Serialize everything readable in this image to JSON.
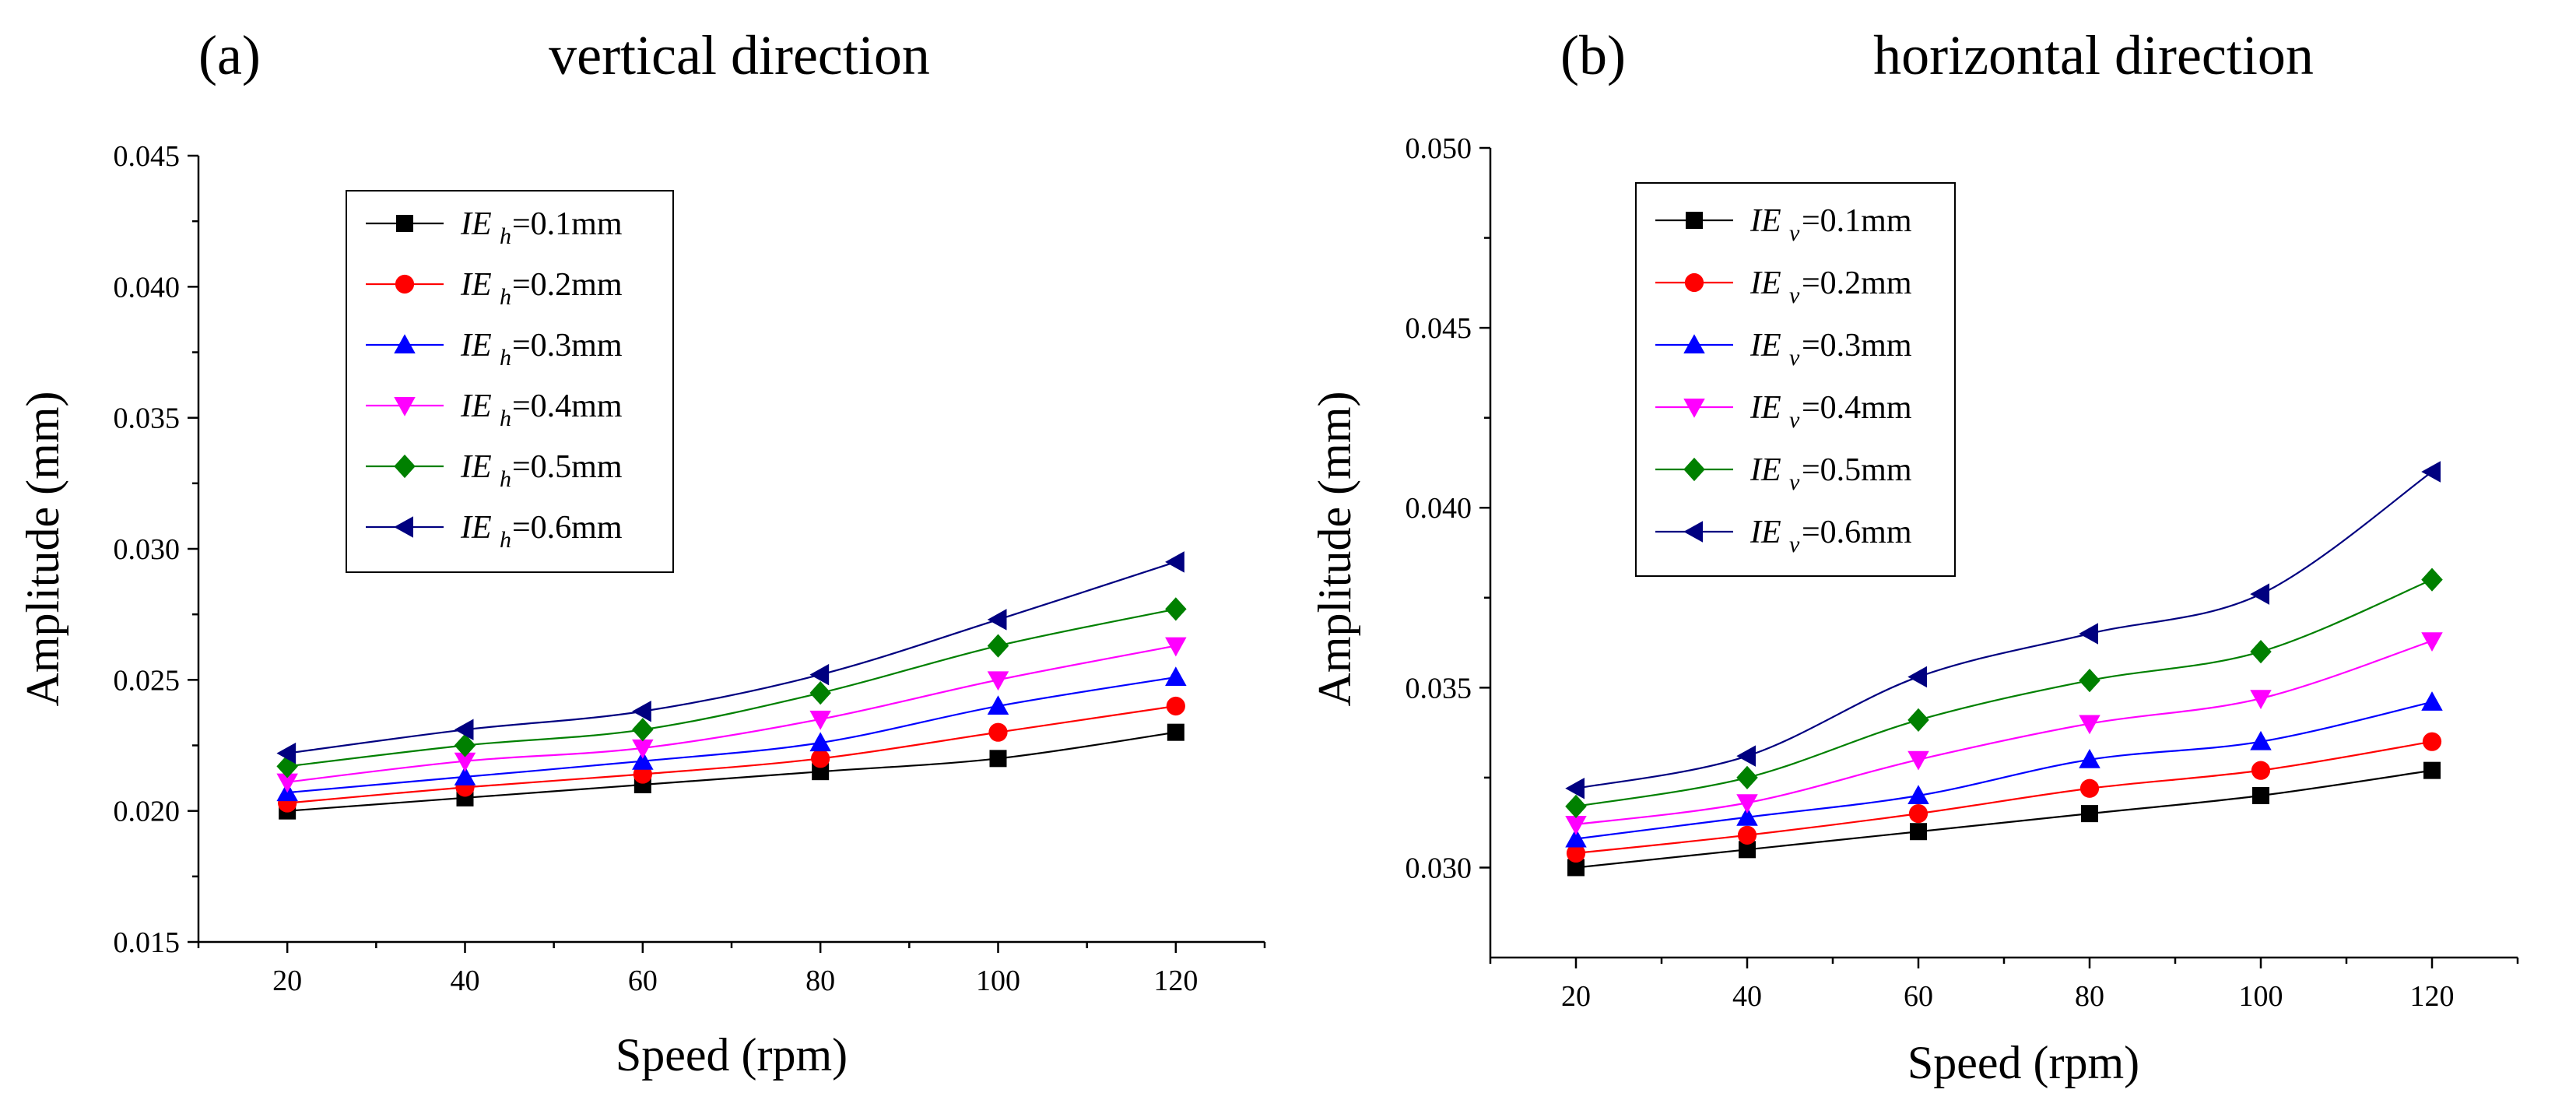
{
  "chart_data": [
    {
      "type": "line",
      "panel_label": "(a)",
      "title": "vertical direction",
      "xlabel": "Speed (rpm)",
      "ylabel": "Amplitude (mm)",
      "x": [
        20,
        40,
        60,
        80,
        100,
        120
      ],
      "xticks": [
        "20",
        "40",
        "60",
        "80",
        "100",
        "120"
      ],
      "xlim": [
        10,
        130
      ],
      "ylim": [
        0.015,
        0.045
      ],
      "yticks": [
        "0.015",
        "0.020",
        "0.025",
        "0.030",
        "0.035",
        "0.040",
        "0.045"
      ],
      "grid": false,
      "legend_position": "top-left",
      "legend_symbol": "IE",
      "legend_subscript": "h",
      "series": [
        {
          "name": "=0.1mm",
          "color": "#000000",
          "marker": "square",
          "values": [
            0.02,
            0.0205,
            0.021,
            0.0215,
            0.022,
            0.023
          ]
        },
        {
          "name": "=0.2mm",
          "color": "#ff0000",
          "marker": "circle",
          "values": [
            0.0203,
            0.0209,
            0.0214,
            0.022,
            0.023,
            0.024
          ]
        },
        {
          "name": "=0.3mm",
          "color": "#0000ff",
          "marker": "triangle-up",
          "values": [
            0.0207,
            0.0213,
            0.0219,
            0.0226,
            0.024,
            0.0251
          ]
        },
        {
          "name": "=0.4mm",
          "color": "#ff00ff",
          "marker": "triangle-down",
          "values": [
            0.0211,
            0.0219,
            0.0224,
            0.0235,
            0.025,
            0.0263
          ]
        },
        {
          "name": "=0.5mm",
          "color": "#008000",
          "marker": "diamond",
          "values": [
            0.0217,
            0.0225,
            0.0231,
            0.0245,
            0.0263,
            0.0277
          ]
        },
        {
          "name": "=0.6mm",
          "color": "#000080",
          "marker": "triangle-left",
          "values": [
            0.0222,
            0.0231,
            0.0238,
            0.0252,
            0.0273,
            0.0295
          ]
        }
      ]
    },
    {
      "type": "line",
      "panel_label": "(b)",
      "title": "horizontal direction",
      "xlabel": "Speed (rpm)",
      "ylabel": "Amplitude (mm)",
      "x": [
        20,
        40,
        60,
        80,
        100,
        120
      ],
      "xticks": [
        "20",
        "40",
        "60",
        "80",
        "100",
        "120"
      ],
      "xlim": [
        10,
        130
      ],
      "ylim": [
        0.0275,
        0.05
      ],
      "yticks": [
        "0.030",
        "0.035",
        "0.040",
        "0.045",
        "0.050"
      ],
      "grid": false,
      "legend_position": "top-left",
      "legend_symbol": "IE",
      "legend_subscript": "v",
      "series": [
        {
          "name": "=0.1mm",
          "color": "#000000",
          "marker": "square",
          "values": [
            0.03,
            0.0305,
            0.031,
            0.0315,
            0.032,
            0.0327
          ]
        },
        {
          "name": "=0.2mm",
          "color": "#ff0000",
          "marker": "circle",
          "values": [
            0.0304,
            0.0309,
            0.0315,
            0.0322,
            0.0327,
            0.0335
          ]
        },
        {
          "name": "=0.3mm",
          "color": "#0000ff",
          "marker": "triangle-up",
          "values": [
            0.0308,
            0.0314,
            0.032,
            0.033,
            0.0335,
            0.0346
          ]
        },
        {
          "name": "=0.4mm",
          "color": "#ff00ff",
          "marker": "triangle-down",
          "values": [
            0.0312,
            0.0318,
            0.033,
            0.034,
            0.0347,
            0.0363
          ]
        },
        {
          "name": "=0.5mm",
          "color": "#008000",
          "marker": "diamond",
          "values": [
            0.0317,
            0.0325,
            0.0341,
            0.0352,
            0.036,
            0.038
          ]
        },
        {
          "name": "=0.6mm",
          "color": "#000080",
          "marker": "triangle-left",
          "values": [
            0.0322,
            0.0331,
            0.0353,
            0.0365,
            0.0376,
            0.041
          ]
        }
      ]
    }
  ]
}
